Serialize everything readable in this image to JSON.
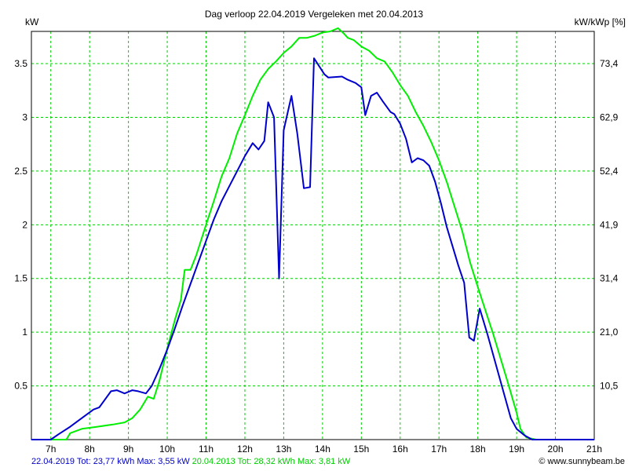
{
  "chart_data": {
    "type": "line",
    "title": "Dag  verloop 22.04.2019   Vergeleken met 20.04.2013",
    "ylabel": "kW",
    "y2label": "kW/kWp [%]",
    "xlim": [
      6.5,
      21.0
    ],
    "ylim": [
      0,
      3.8
    ],
    "grid": true,
    "x_ticks": [
      {
        "v": 7,
        "label": "7h"
      },
      {
        "v": 8,
        "label": "8h"
      },
      {
        "v": 9,
        "label": "9h"
      },
      {
        "v": 10,
        "label": "10h"
      },
      {
        "v": 11,
        "label": "11h"
      },
      {
        "v": 12,
        "label": "12h"
      },
      {
        "v": 13,
        "label": "13h"
      },
      {
        "v": 14,
        "label": "14h"
      },
      {
        "v": 15,
        "label": "15h"
      },
      {
        "v": 16,
        "label": "16h"
      },
      {
        "v": 17,
        "label": "17h"
      },
      {
        "v": 18,
        "label": "18h"
      },
      {
        "v": 19,
        "label": "19h"
      },
      {
        "v": 20,
        "label": "20h"
      },
      {
        "v": 21,
        "label": "21h"
      }
    ],
    "y_ticks": [
      {
        "v": 0.5,
        "label": "0.5"
      },
      {
        "v": 1,
        "label": "1"
      },
      {
        "v": 1.5,
        "label": "1.5"
      },
      {
        "v": 2,
        "label": "2"
      },
      {
        "v": 2.5,
        "label": "2.5"
      },
      {
        "v": 3,
        "label": "3"
      },
      {
        "v": 3.5,
        "label": "3.5"
      }
    ],
    "y2_ticks": [
      {
        "v": 0.5,
        "label": "10,5"
      },
      {
        "v": 1,
        "label": "21,0"
      },
      {
        "v": 1.5,
        "label": "31,4"
      },
      {
        "v": 2,
        "label": "41,9"
      },
      {
        "v": 2.5,
        "label": "52,4"
      },
      {
        "v": 3,
        "label": "62,9"
      },
      {
        "v": 3.5,
        "label": "73,4"
      }
    ],
    "series": [
      {
        "name": "22.04.2019",
        "color": "#0000cc",
        "points": [
          [
            6.5,
            0
          ],
          [
            7.0,
            0
          ],
          [
            7.2,
            0.05
          ],
          [
            7.5,
            0.12
          ],
          [
            7.8,
            0.2
          ],
          [
            8.1,
            0.28
          ],
          [
            8.25,
            0.3
          ],
          [
            8.55,
            0.45
          ],
          [
            8.7,
            0.46
          ],
          [
            8.9,
            0.43
          ],
          [
            9.1,
            0.46
          ],
          [
            9.25,
            0.45
          ],
          [
            9.45,
            0.43
          ],
          [
            9.6,
            0.5
          ],
          [
            9.8,
            0.66
          ],
          [
            10.0,
            0.84
          ],
          [
            10.2,
            1.04
          ],
          [
            10.4,
            1.25
          ],
          [
            10.6,
            1.45
          ],
          [
            10.8,
            1.65
          ],
          [
            11.0,
            1.85
          ],
          [
            11.2,
            2.05
          ],
          [
            11.4,
            2.22
          ],
          [
            11.6,
            2.36
          ],
          [
            11.8,
            2.5
          ],
          [
            12.0,
            2.64
          ],
          [
            12.2,
            2.76
          ],
          [
            12.35,
            2.7
          ],
          [
            12.5,
            2.78
          ],
          [
            12.6,
            3.14
          ],
          [
            12.75,
            3.0
          ],
          [
            12.88,
            1.5
          ],
          [
            13.0,
            2.88
          ],
          [
            13.2,
            3.2
          ],
          [
            13.35,
            2.85
          ],
          [
            13.52,
            2.34
          ],
          [
            13.68,
            2.35
          ],
          [
            13.78,
            3.55
          ],
          [
            14.05,
            3.4
          ],
          [
            14.15,
            3.37
          ],
          [
            14.5,
            3.38
          ],
          [
            14.65,
            3.35
          ],
          [
            14.85,
            3.32
          ],
          [
            15.0,
            3.28
          ],
          [
            15.1,
            3.02
          ],
          [
            15.25,
            3.2
          ],
          [
            15.4,
            3.23
          ],
          [
            15.55,
            3.15
          ],
          [
            15.75,
            3.05
          ],
          [
            15.85,
            3.03
          ],
          [
            16.0,
            2.94
          ],
          [
            16.15,
            2.8
          ],
          [
            16.3,
            2.58
          ],
          [
            16.45,
            2.62
          ],
          [
            16.6,
            2.6
          ],
          [
            16.75,
            2.55
          ],
          [
            16.9,
            2.4
          ],
          [
            17.05,
            2.2
          ],
          [
            17.2,
            1.98
          ],
          [
            17.35,
            1.8
          ],
          [
            17.5,
            1.62
          ],
          [
            17.65,
            1.46
          ],
          [
            17.78,
            0.95
          ],
          [
            17.9,
            0.92
          ],
          [
            18.05,
            1.22
          ],
          [
            18.25,
            0.98
          ],
          [
            18.45,
            0.72
          ],
          [
            18.65,
            0.46
          ],
          [
            18.85,
            0.2
          ],
          [
            19.0,
            0.1
          ],
          [
            19.2,
            0.04
          ],
          [
            19.4,
            0
          ],
          [
            21.0,
            0
          ]
        ]
      },
      {
        "name": "20.04.2013",
        "color": "#00ee00",
        "points": [
          [
            6.5,
            0
          ],
          [
            7.4,
            0
          ],
          [
            7.5,
            0.06
          ],
          [
            7.8,
            0.1
          ],
          [
            8.2,
            0.12
          ],
          [
            8.6,
            0.14
          ],
          [
            8.9,
            0.16
          ],
          [
            9.1,
            0.2
          ],
          [
            9.3,
            0.28
          ],
          [
            9.5,
            0.4
          ],
          [
            9.65,
            0.38
          ],
          [
            9.8,
            0.55
          ],
          [
            10.0,
            0.85
          ],
          [
            10.2,
            1.12
          ],
          [
            10.35,
            1.3
          ],
          [
            10.45,
            1.58
          ],
          [
            10.6,
            1.58
          ],
          [
            10.75,
            1.72
          ],
          [
            11.0,
            2.0
          ],
          [
            11.2,
            2.22
          ],
          [
            11.4,
            2.45
          ],
          [
            11.6,
            2.62
          ],
          [
            11.8,
            2.85
          ],
          [
            12.0,
            3.02
          ],
          [
            12.2,
            3.2
          ],
          [
            12.4,
            3.35
          ],
          [
            12.6,
            3.45
          ],
          [
            12.8,
            3.52
          ],
          [
            13.0,
            3.6
          ],
          [
            13.2,
            3.66
          ],
          [
            13.4,
            3.74
          ],
          [
            13.6,
            3.74
          ],
          [
            13.8,
            3.76
          ],
          [
            14.0,
            3.79
          ],
          [
            14.2,
            3.8
          ],
          [
            14.4,
            3.83
          ],
          [
            14.55,
            3.78
          ],
          [
            14.65,
            3.74
          ],
          [
            14.8,
            3.72
          ],
          [
            15.0,
            3.66
          ],
          [
            15.2,
            3.62
          ],
          [
            15.4,
            3.55
          ],
          [
            15.6,
            3.52
          ],
          [
            15.8,
            3.42
          ],
          [
            16.0,
            3.3
          ],
          [
            16.2,
            3.2
          ],
          [
            16.4,
            3.05
          ],
          [
            16.6,
            2.92
          ],
          [
            16.8,
            2.77
          ],
          [
            17.0,
            2.6
          ],
          [
            17.2,
            2.4
          ],
          [
            17.4,
            2.17
          ],
          [
            17.6,
            1.94
          ],
          [
            17.8,
            1.65
          ],
          [
            18.0,
            1.42
          ],
          [
            18.2,
            1.2
          ],
          [
            18.4,
            0.98
          ],
          [
            18.6,
            0.74
          ],
          [
            18.8,
            0.5
          ],
          [
            19.0,
            0.25
          ],
          [
            19.1,
            0.1
          ],
          [
            19.25,
            0.02
          ],
          [
            19.5,
            0
          ],
          [
            21.0,
            0
          ]
        ]
      }
    ]
  },
  "footer": {
    "series1_text": "22.04.2019 Tot: 23,77 kWh Max: 3,55 kW",
    "series2_text": "20.04.2013 Tot: 28,32 kWh Max: 3,81 kW",
    "credit": "© www.sunnybeam.be"
  }
}
